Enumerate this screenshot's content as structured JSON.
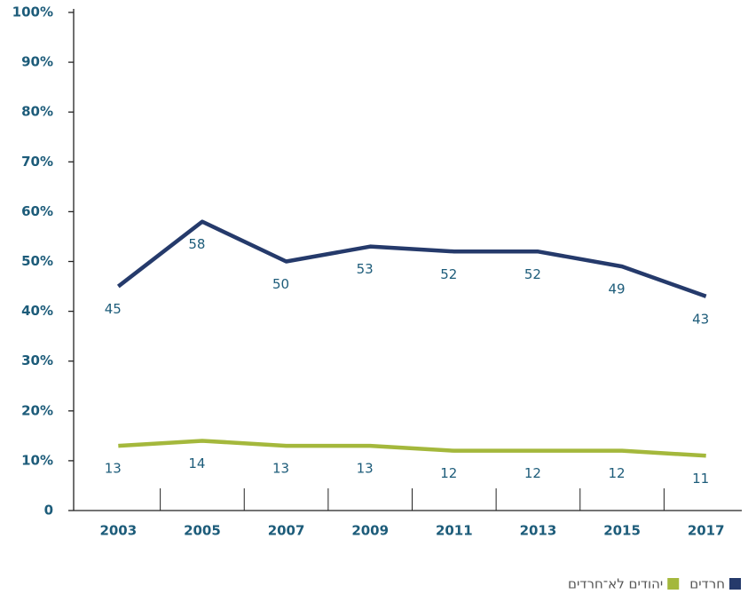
{
  "chart_data": {
    "type": "line",
    "x": [
      2003,
      2005,
      2007,
      2009,
      2011,
      2013,
      2015,
      2017
    ],
    "xlim": [
      2002,
      2018
    ],
    "xticks": [
      2003,
      2005,
      2007,
      2009,
      2011,
      2013,
      2015,
      2017
    ],
    "ylim": [
      0,
      100
    ],
    "yticks": [
      0,
      {
        "value": 10,
        "label": "10%"
      },
      {
        "value": 20,
        "label": "20%"
      },
      {
        "value": 30,
        "label": "30%"
      },
      {
        "value": 40,
        "label": "40%"
      },
      {
        "value": 50,
        "label": "50%"
      },
      {
        "value": 60,
        "label": "60%"
      },
      {
        "value": 70,
        "label": "70%"
      },
      {
        "value": 80,
        "label": "80%"
      },
      {
        "value": 90,
        "label": "90%"
      },
      {
        "value": 100,
        "label": "100%"
      }
    ],
    "grid": false,
    "legend": "bottom-right",
    "series": [
      {
        "name": "חרדים",
        "color": "#253a6b",
        "values": [
          45,
          58,
          50,
          53,
          52,
          52,
          49,
          43
        ]
      },
      {
        "name": "יהודים לא־חרדים",
        "color": "#a4b83c",
        "values": [
          13,
          14,
          13,
          13,
          12,
          12,
          12,
          11
        ]
      }
    ]
  }
}
